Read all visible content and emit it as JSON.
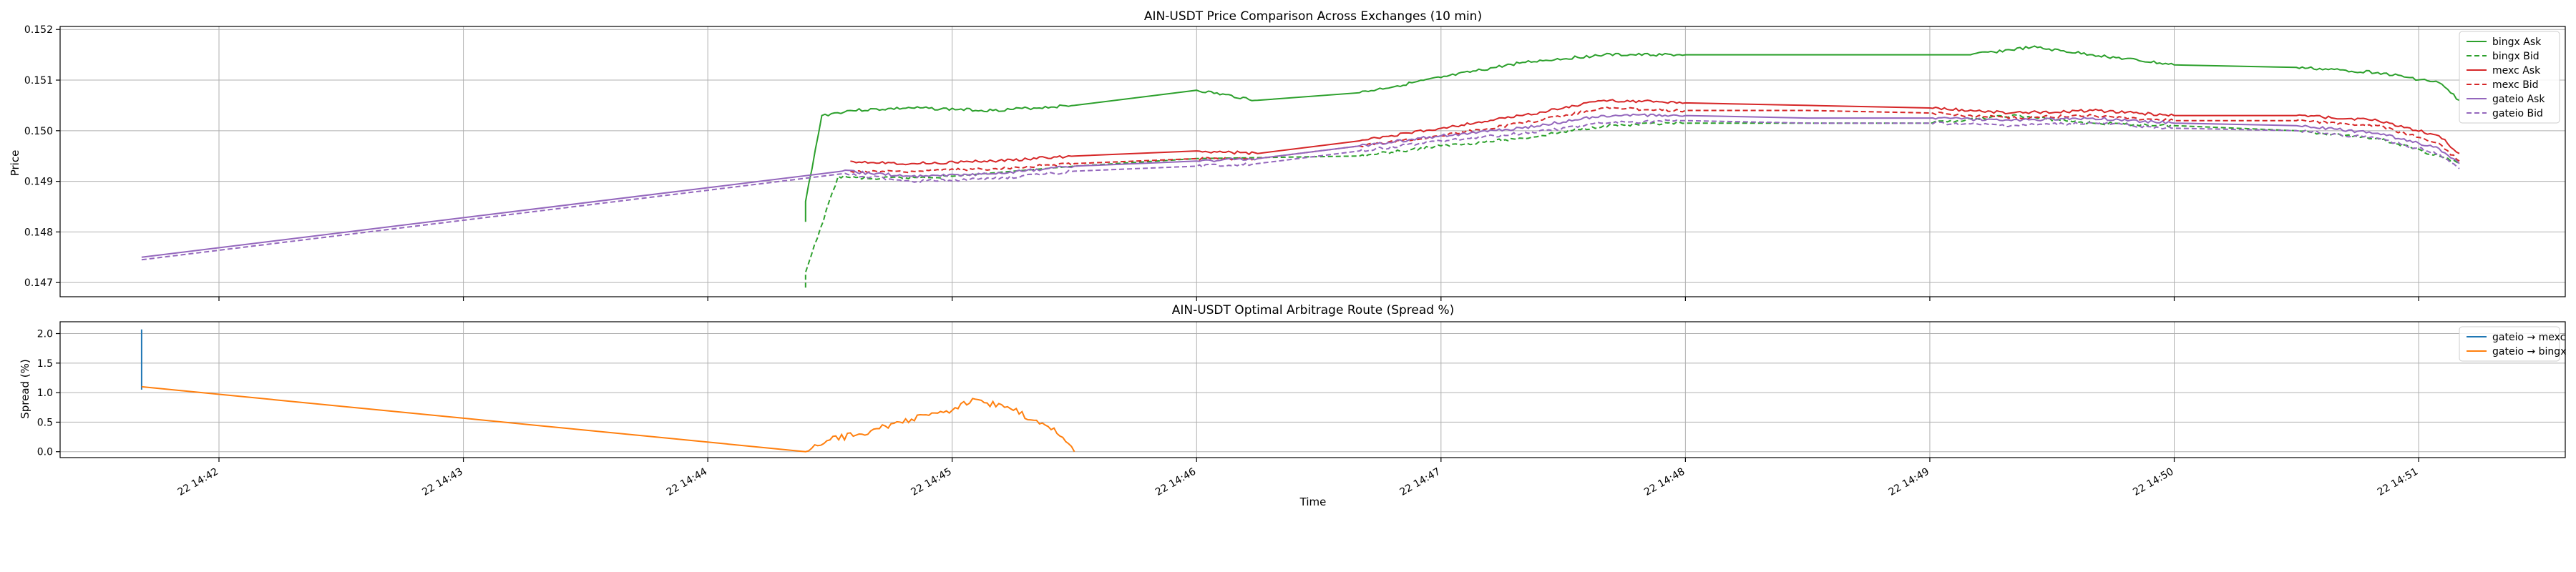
{
  "chart_data": [
    {
      "type": "line",
      "title": "AIN-USDT Price Comparison Across Exchanges (10 min)",
      "xlabel": "",
      "ylabel": "Price",
      "ylim": [
        0.14672,
        0.15206
      ],
      "yticks": [
        "0.147",
        "0.148",
        "0.149",
        "0.150",
        "0.151",
        "0.152"
      ],
      "grid": true,
      "legend_position": "top-right",
      "series": [
        {
          "name": "bingx Ask",
          "color": "#2ca02c",
          "style": "solid",
          "x": [
            "14:44:24",
            "14:44:24",
            "14:44:28",
            "14:44:35",
            "14:44:50",
            "14:45:10",
            "14:45:30",
            "14:46:00",
            "14:46:15",
            "14:46:40",
            "14:47:00",
            "14:47:20",
            "14:47:40",
            "14:48:00",
            "14:48:30",
            "14:49:10",
            "14:49:25",
            "14:49:40",
            "14:50:00",
            "14:50:30",
            "14:50:50",
            "14:51:05",
            "14:51:10"
          ],
          "y": [
            0.1482,
            0.1486,
            0.1503,
            0.1504,
            0.15045,
            0.1504,
            0.1505,
            0.1508,
            0.1506,
            0.15075,
            0.15105,
            0.15135,
            0.1515,
            0.1515,
            0.1515,
            0.1515,
            0.15165,
            0.1515,
            0.1513,
            0.15125,
            0.15115,
            0.15095,
            0.1506
          ]
        },
        {
          "name": "bingx Bid",
          "color": "#2ca02c",
          "style": "dashed",
          "x": [
            "14:44:24",
            "14:44:24",
            "14:44:32",
            "14:44:40",
            "14:45:00",
            "14:45:30",
            "14:46:00",
            "14:46:40",
            "14:47:00",
            "14:47:20",
            "14:47:40",
            "14:48:00",
            "14:48:30",
            "14:49:00",
            "14:49:20",
            "14:49:40",
            "14:50:00",
            "14:50:30",
            "14:50:50",
            "14:51:05",
            "14:51:10"
          ],
          "y": [
            0.1469,
            0.1472,
            0.1491,
            0.14905,
            0.1491,
            0.1493,
            0.14945,
            0.1495,
            0.1497,
            0.14985,
            0.1501,
            0.15015,
            0.15015,
            0.15015,
            0.1503,
            0.15015,
            0.1501,
            0.15,
            0.14985,
            0.1495,
            0.14935
          ]
        },
        {
          "name": "mexc Ask",
          "color": "#d62728",
          "style": "solid",
          "x": [
            "14:44:35",
            "14:44:50",
            "14:45:10",
            "14:45:30",
            "14:46:00",
            "14:46:15",
            "14:46:40",
            "14:47:00",
            "14:47:20",
            "14:47:40",
            "14:48:00",
            "14:48:30",
            "14:49:00",
            "14:49:20",
            "14:49:40",
            "14:50:00",
            "14:50:30",
            "14:50:50",
            "14:51:05",
            "14:51:10"
          ],
          "y": [
            0.1494,
            0.14935,
            0.1494,
            0.1495,
            0.1496,
            0.14955,
            0.1498,
            0.15005,
            0.1503,
            0.1506,
            0.15055,
            0.1505,
            0.15045,
            0.15035,
            0.1504,
            0.1503,
            0.1503,
            0.1502,
            0.1499,
            0.14955
          ]
        },
        {
          "name": "mexc Bid",
          "color": "#d62728",
          "style": "dashed",
          "x": [
            "14:44:35",
            "14:44:50",
            "14:45:10",
            "14:45:30",
            "14:46:00",
            "14:46:15",
            "14:46:40",
            "14:47:00",
            "14:47:20",
            "14:47:40",
            "14:48:00",
            "14:48:30",
            "14:49:00",
            "14:49:20",
            "14:49:40",
            "14:50:00",
            "14:50:30",
            "14:50:50",
            "14:51:05",
            "14:51:10"
          ],
          "y": [
            0.1492,
            0.1492,
            0.14925,
            0.14935,
            0.14945,
            0.14945,
            0.1497,
            0.1499,
            0.15015,
            0.15045,
            0.1504,
            0.1504,
            0.15035,
            0.15025,
            0.1503,
            0.1502,
            0.1502,
            0.1501,
            0.14975,
            0.1494
          ]
        },
        {
          "name": "gateio Ask",
          "color": "#9467bd",
          "style": "solid",
          "x": [
            "14:41:41",
            "14:44:33",
            "14:44:50",
            "14:45:10",
            "14:45:30",
            "14:46:00",
            "14:46:15",
            "14:46:40",
            "14:47:00",
            "14:47:20",
            "14:47:40",
            "14:48:00",
            "14:48:30",
            "14:49:00",
            "14:49:20",
            "14:49:40",
            "14:50:00",
            "14:50:30",
            "14:50:50",
            "14:51:05",
            "14:51:10"
          ],
          "y": [
            0.1475,
            0.1492,
            0.1491,
            0.14915,
            0.1493,
            0.1494,
            0.14945,
            0.1497,
            0.1499,
            0.15005,
            0.1503,
            0.1503,
            0.15025,
            0.15025,
            0.1502,
            0.15025,
            0.15015,
            0.1501,
            0.14995,
            0.14965,
            0.14935
          ]
        },
        {
          "name": "gateio Bid",
          "color": "#9467bd",
          "style": "dashed",
          "x": [
            "14:41:41",
            "14:44:33",
            "14:44:50",
            "14:45:10",
            "14:45:30",
            "14:46:00",
            "14:46:15",
            "14:46:40",
            "14:47:00",
            "14:47:20",
            "14:47:40",
            "14:48:00",
            "14:48:30",
            "14:49:00",
            "14:49:20",
            "14:49:40",
            "14:50:00",
            "14:50:30",
            "14:50:50",
            "14:51:05",
            "14:51:10"
          ],
          "y": [
            0.14745,
            0.14915,
            0.149,
            0.14905,
            0.1492,
            0.1493,
            0.14935,
            0.1496,
            0.1498,
            0.14995,
            0.15015,
            0.1502,
            0.15015,
            0.15015,
            0.1501,
            0.15015,
            0.15005,
            0.15,
            0.14985,
            0.14955,
            0.14925
          ]
        }
      ]
    },
    {
      "type": "line",
      "title": "AIN-USDT Optimal Arbitrage Route (Spread %)",
      "xlabel": "Time",
      "ylabel": "Spread (%)",
      "ylim": [
        -0.1,
        2.2
      ],
      "yticks": [
        "0.0",
        "0.5",
        "1.0",
        "1.5",
        "2.0"
      ],
      "xticks": [
        "22 14:42",
        "22 14:43",
        "22 14:44",
        "22 14:45",
        "22 14:46",
        "22 14:47",
        "22 14:48",
        "22 14:49",
        "22 14:50",
        "22 14:51"
      ],
      "grid": true,
      "legend_position": "top-right",
      "series": [
        {
          "name": "gateio → mexc",
          "color": "#1f77b4",
          "style": "solid",
          "x": [
            "14:41:41",
            "14:41:41"
          ],
          "y": [
            1.05,
            2.07
          ]
        },
        {
          "name": "gateio → bingx",
          "color": "#ff7f0e",
          "style": "solid",
          "x": [
            "14:41:41",
            "14:44:24",
            "14:44:30",
            "14:44:40",
            "14:44:50",
            "14:45:00",
            "14:45:05",
            "14:45:15",
            "14:45:25",
            "14:45:30"
          ],
          "y": [
            1.1,
            0.0,
            0.2,
            0.35,
            0.55,
            0.7,
            0.9,
            0.7,
            0.4,
            0.0
          ]
        }
      ]
    }
  ]
}
